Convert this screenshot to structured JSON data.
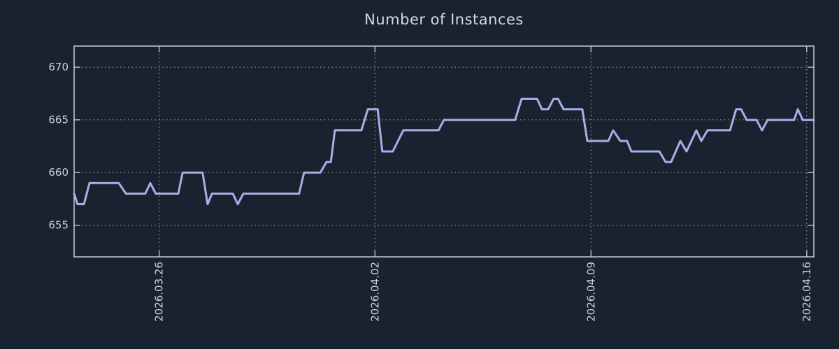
{
  "style": {
    "background": "#19222f",
    "title_color": "#d5d8dc",
    "tick_label_color": "#ccd0d6",
    "grid_color": "#c9ccd3",
    "border_color": "#c9ccd3",
    "line_color": "#a9aee8"
  },
  "chart_data": {
    "type": "line",
    "title": "Number of Instances",
    "xlabel": "",
    "ylabel": "",
    "legend": "none",
    "grid": "dotted gridlines on both axes, boxed plot with mirrored inward ticks",
    "x_range": [
      0,
      24
    ],
    "y_range": [
      652,
      672
    ],
    "x_note": "x in days from left edge of window; labeled ticks are dates",
    "x_ticks": [
      {
        "day": 2.76,
        "label": "2026.03.26"
      },
      {
        "day": 9.76,
        "label": "2026.04.02"
      },
      {
        "day": 16.77,
        "label": "2026.04.09"
      },
      {
        "day": 23.77,
        "label": "2026.04.16"
      }
    ],
    "y_ticks": [
      {
        "value": 655,
        "label": "655"
      },
      {
        "value": 660,
        "label": "660"
      },
      {
        "value": 665,
        "label": "665"
      },
      {
        "value": 670,
        "label": "670"
      }
    ],
    "series": [
      {
        "name": "instances",
        "color": "#a9aee8",
        "points": [
          [
            0.0,
            658
          ],
          [
            0.11,
            657
          ],
          [
            0.32,
            657
          ],
          [
            0.5,
            659
          ],
          [
            1.45,
            659
          ],
          [
            1.68,
            658
          ],
          [
            2.31,
            658
          ],
          [
            2.47,
            659
          ],
          [
            2.65,
            658
          ],
          [
            3.38,
            658
          ],
          [
            3.52,
            660
          ],
          [
            4.17,
            660
          ],
          [
            4.33,
            657
          ],
          [
            4.47,
            658
          ],
          [
            5.15,
            658
          ],
          [
            5.31,
            657
          ],
          [
            5.49,
            658
          ],
          [
            7.3,
            658
          ],
          [
            7.46,
            660
          ],
          [
            7.99,
            660
          ],
          [
            8.19,
            661
          ],
          [
            8.33,
            661
          ],
          [
            8.46,
            664
          ],
          [
            9.32,
            664
          ],
          [
            9.53,
            666
          ],
          [
            9.85,
            666
          ],
          [
            10.0,
            662
          ],
          [
            10.34,
            662
          ],
          [
            10.68,
            664
          ],
          [
            11.82,
            664
          ],
          [
            12.0,
            665
          ],
          [
            14.31,
            665
          ],
          [
            14.52,
            667
          ],
          [
            15.02,
            667
          ],
          [
            15.18,
            666
          ],
          [
            15.38,
            666
          ],
          [
            15.56,
            667
          ],
          [
            15.7,
            667
          ],
          [
            15.88,
            666
          ],
          [
            16.49,
            666
          ],
          [
            16.65,
            663
          ],
          [
            17.33,
            663
          ],
          [
            17.49,
            664
          ],
          [
            17.72,
            663
          ],
          [
            17.94,
            663
          ],
          [
            18.08,
            662
          ],
          [
            18.99,
            662
          ],
          [
            19.19,
            661
          ],
          [
            19.37,
            661
          ],
          [
            19.67,
            663
          ],
          [
            19.87,
            662
          ],
          [
            20.19,
            664
          ],
          [
            20.35,
            663
          ],
          [
            20.55,
            664
          ],
          [
            21.28,
            664
          ],
          [
            21.48,
            666
          ],
          [
            21.64,
            666
          ],
          [
            21.82,
            665
          ],
          [
            22.14,
            665
          ],
          [
            22.32,
            664
          ],
          [
            22.5,
            665
          ],
          [
            23.36,
            665
          ],
          [
            23.48,
            666
          ],
          [
            23.64,
            665
          ],
          [
            24.0,
            665
          ]
        ]
      }
    ]
  }
}
